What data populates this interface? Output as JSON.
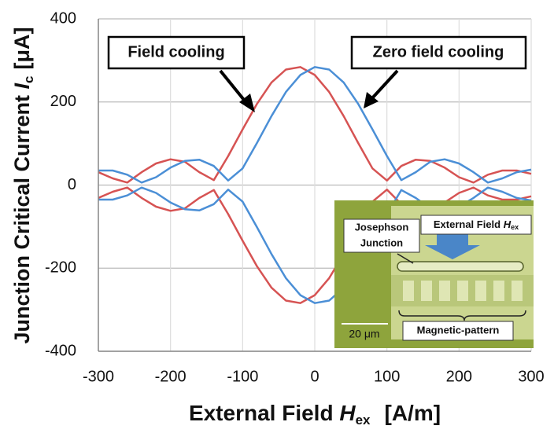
{
  "chart_data": {
    "type": "line",
    "x": [
      -300,
      -280,
      -260,
      -240,
      -220,
      -200,
      -180,
      -160,
      -140,
      -120,
      -100,
      -80,
      -60,
      -40,
      -20,
      0,
      20,
      40,
      60,
      80,
      100,
      120,
      140,
      160,
      180,
      200,
      220,
      240,
      260,
      280,
      300
    ],
    "series": [
      {
        "name": "Field cooling",
        "color": "#d65353",
        "values": [
          31,
          16,
          6,
          31,
          52,
          62,
          56,
          31,
          12,
          70,
          134,
          196,
          247,
          278,
          284,
          265,
          224,
          166,
          102,
          40,
          11,
          46,
          61,
          58,
          42,
          19,
          6,
          25,
          35,
          35,
          27
        ],
        "lower": [
          -31,
          -16,
          -6,
          -31,
          -52,
          -62,
          -56,
          -31,
          -12,
          -70,
          -134,
          -196,
          -247,
          -278,
          -284,
          -265,
          -224,
          -166,
          -102,
          -40,
          -11,
          -46,
          -61,
          -58,
          -42,
          -19,
          -6,
          -25,
          -35,
          -35,
          -27
        ]
      },
      {
        "name": "Zero field cooling",
        "color": "#4b8fd6",
        "values": [
          35,
          35,
          25,
          6,
          19,
          42,
          58,
          61,
          46,
          11,
          40,
          102,
          166,
          224,
          265,
          284,
          278,
          247,
          196,
          134,
          70,
          12,
          31,
          56,
          62,
          52,
          31,
          6,
          16,
          31,
          37
        ],
        "lower": [
          -35,
          -35,
          -25,
          -6,
          -19,
          -42,
          -58,
          -61,
          -46,
          -11,
          -40,
          -102,
          -166,
          -224,
          -265,
          -284,
          -278,
          -247,
          -196,
          -134,
          -70,
          -12,
          -31,
          -56,
          -62,
          -52,
          -31,
          -6,
          -16,
          -31,
          -37
        ]
      }
    ],
    "xlim": [
      -300,
      300
    ],
    "xticks": [
      -300,
      -200,
      -100,
      0,
      100,
      200,
      300
    ],
    "ylim": [
      -400,
      400
    ],
    "yticks": [
      -400,
      -200,
      0,
      200,
      400
    ],
    "grid": true,
    "x_label": {
      "text": "External Field ",
      "var": "H",
      "sub": "ex",
      "unit": "[A/m]"
    },
    "y_label": {
      "text": "Junction Critical Current ",
      "var": "I",
      "sub": "c",
      "unit": "[μA]"
    },
    "inset": {
      "junction_label": [
        "Josephson",
        "Junction"
      ],
      "field_label": {
        "text": "External Field ",
        "var": "H",
        "sub": "ex"
      },
      "scale": "20 μm",
      "pattern_label": "Magnetic-pattern"
    }
  }
}
